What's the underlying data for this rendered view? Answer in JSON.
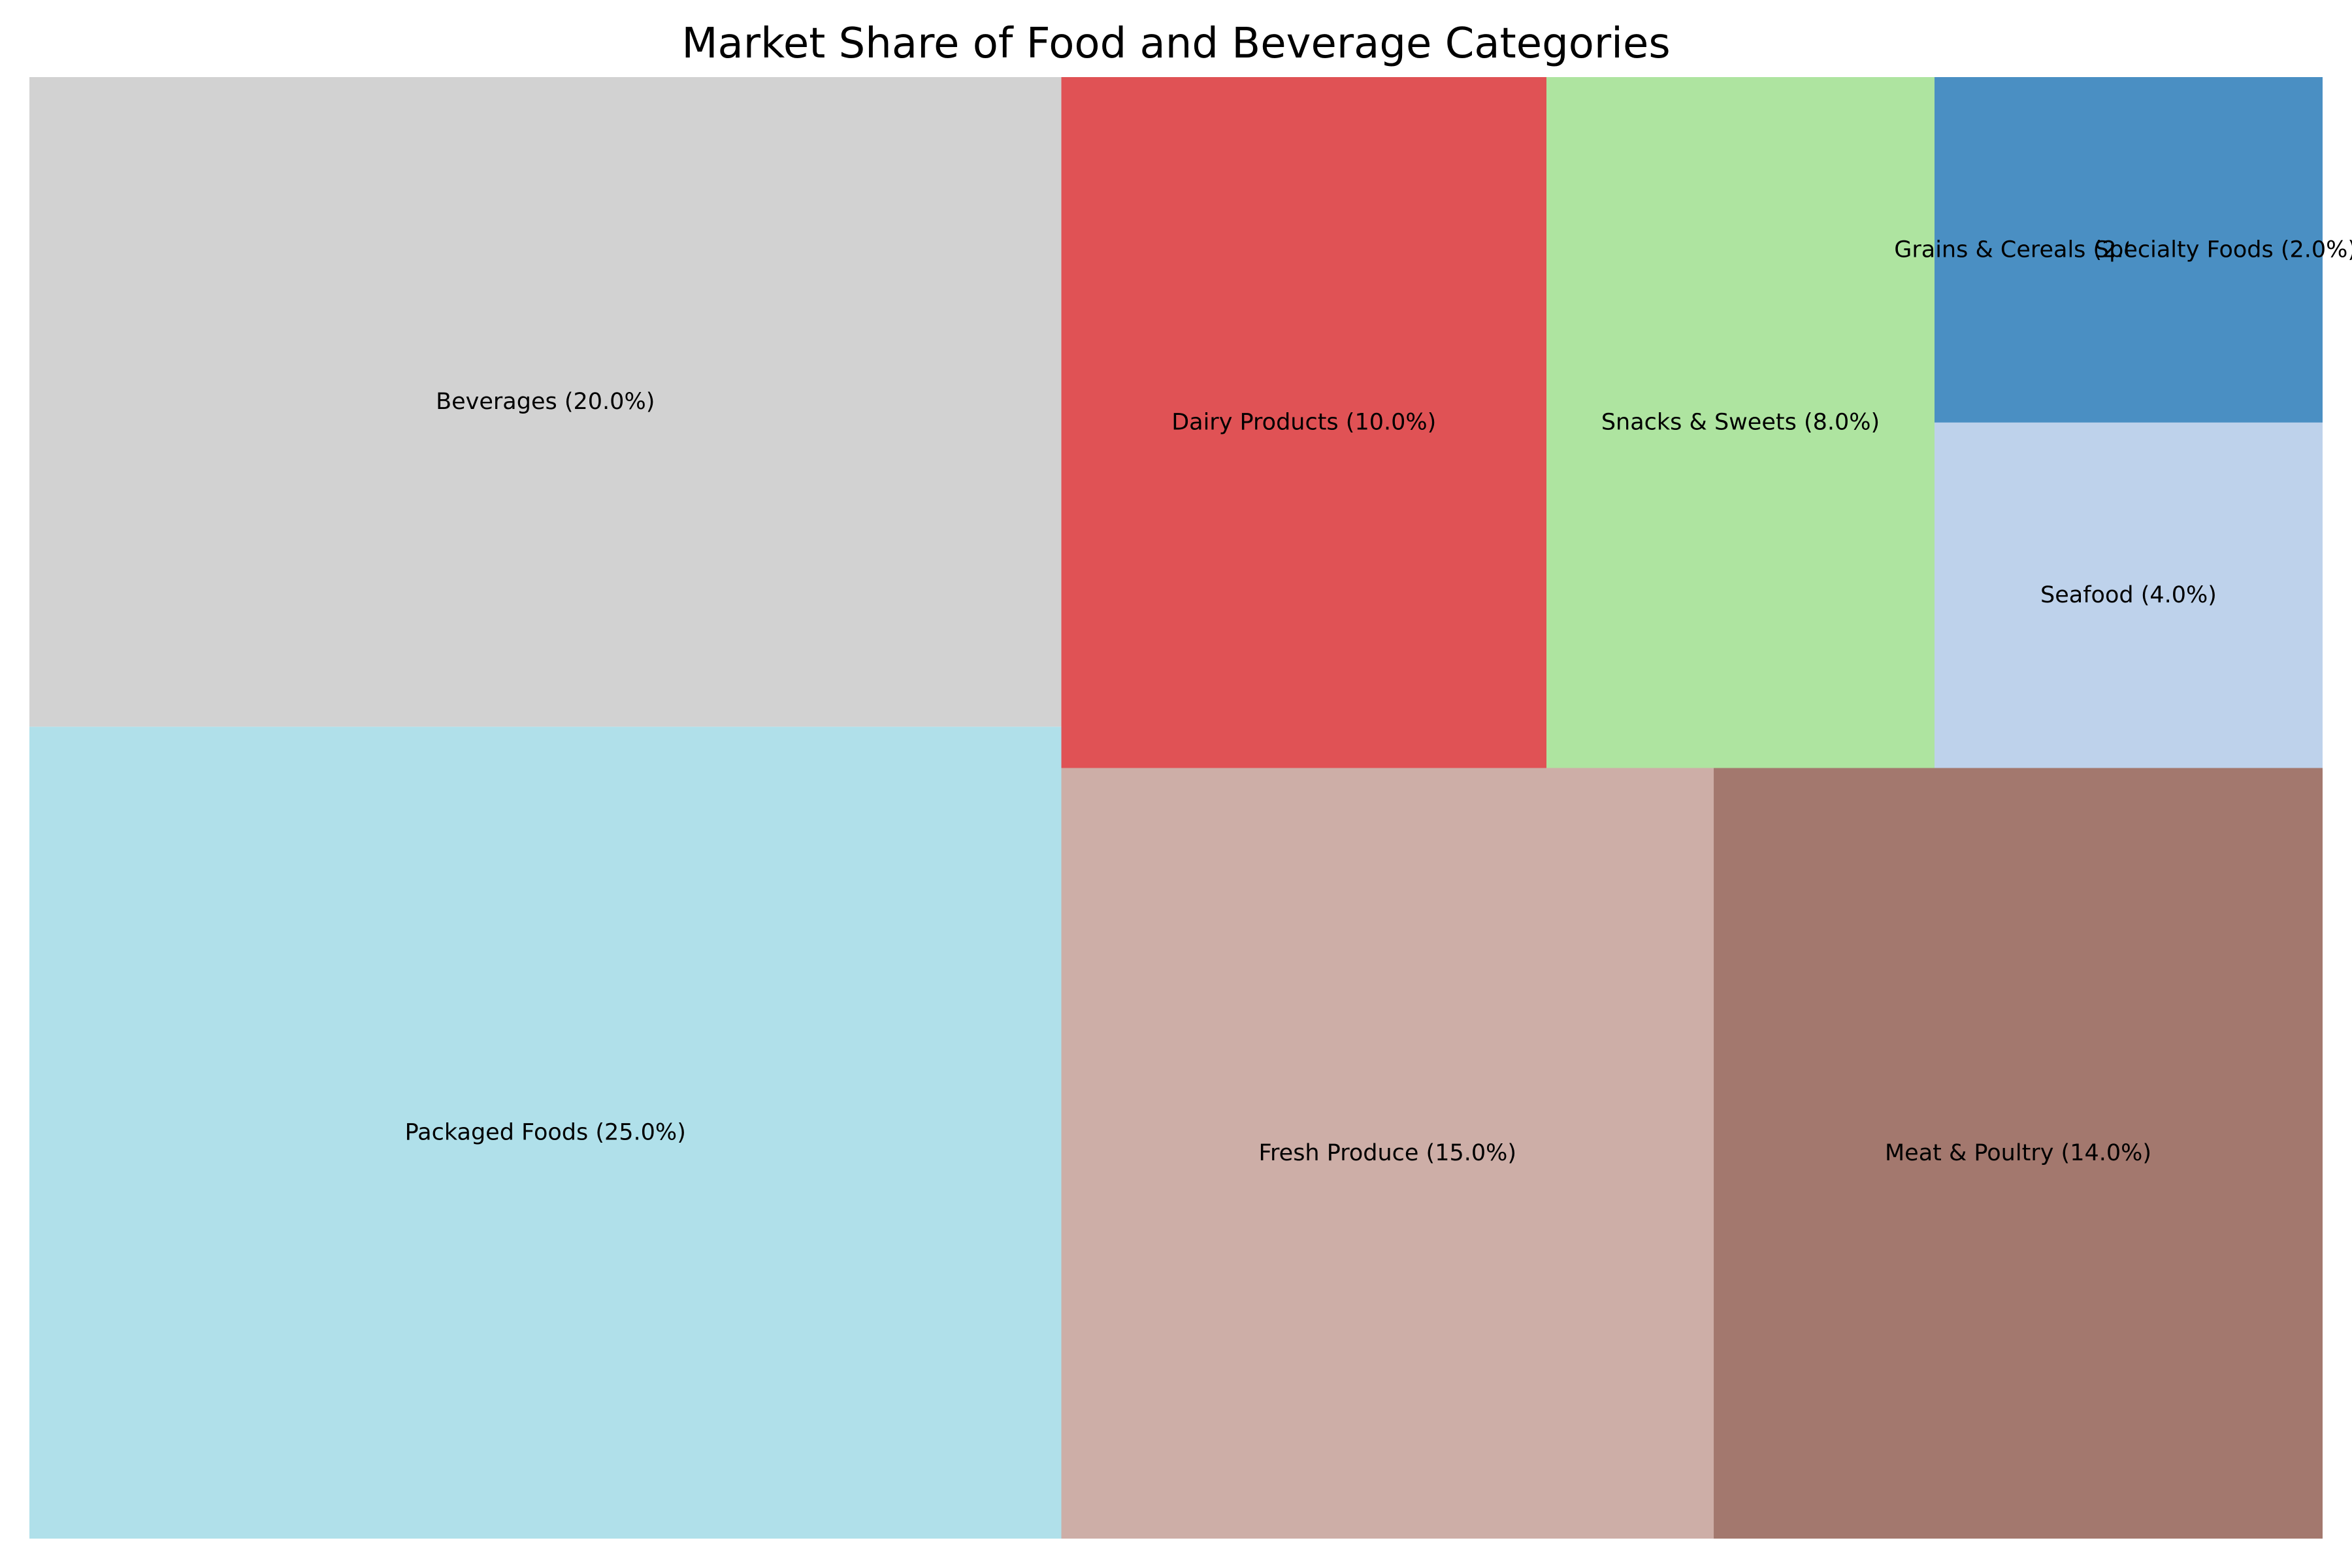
{
  "chart_data": {
    "type": "treemap",
    "title": "Market Share of Food and Beverage Categories",
    "unit": "%",
    "items": [
      {
        "label": "Packaged Foods",
        "value": 25.0,
        "color": "#b0e0ea"
      },
      {
        "label": "Beverages",
        "value": 20.0,
        "color": "#d2d2d2"
      },
      {
        "label": "Fresh Produce",
        "value": 15.0,
        "color": "#cdaea7"
      },
      {
        "label": "Meat & Poultry",
        "value": 14.0,
        "color": "#a3786e"
      },
      {
        "label": "Dairy Products",
        "value": 10.0,
        "color": "#e05255"
      },
      {
        "label": "Snacks & Sweets",
        "value": 8.0,
        "color": "#aee4a0"
      },
      {
        "label": "Seafood",
        "value": 4.0,
        "color": "#bed2eb"
      },
      {
        "label": "Grains & Cereals",
        "value": 2.0,
        "color": "#4a8fc3"
      },
      {
        "label": "Specialty Foods",
        "value": 2.0,
        "color": "#4a8fc3"
      }
    ]
  }
}
